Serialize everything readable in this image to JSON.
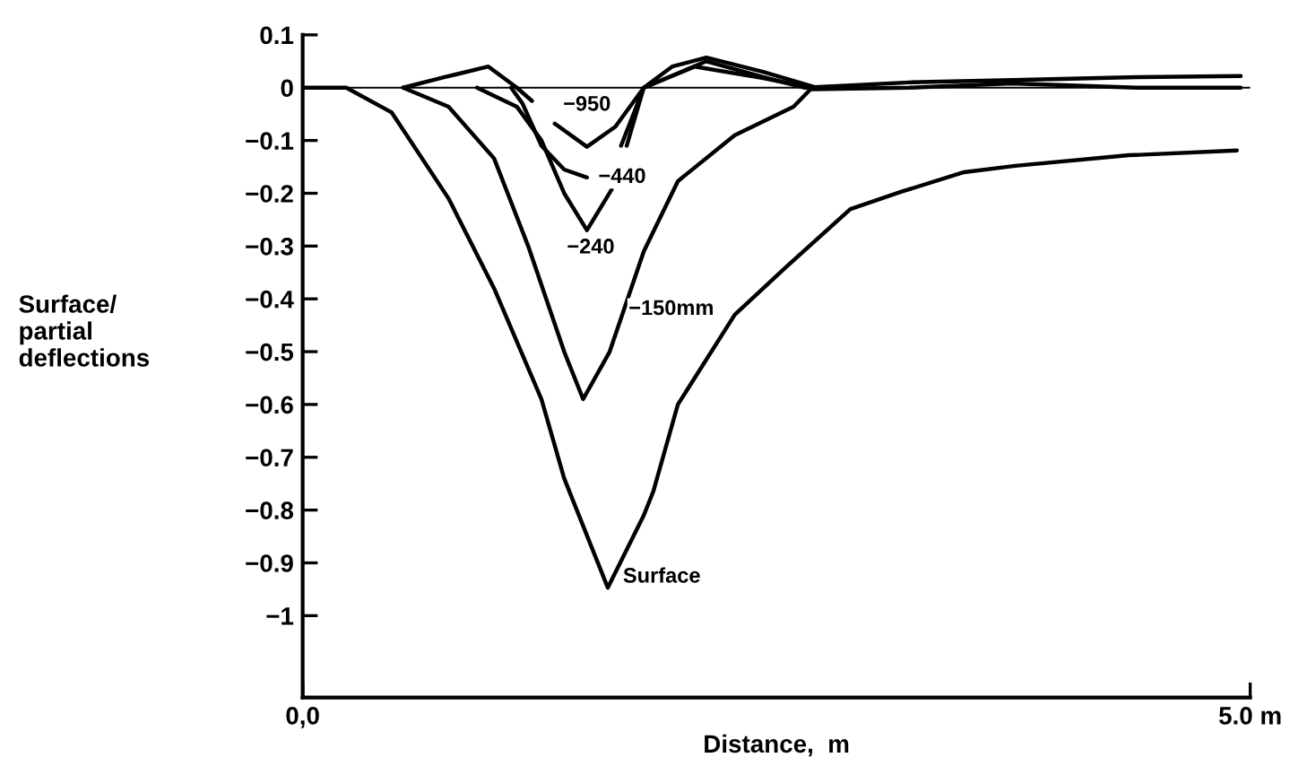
{
  "chart_data": {
    "type": "line",
    "xlabel": "Distance,  m",
    "ylabel": "Surface/\npartial\ndeflections",
    "xlim": [
      0,
      5.0
    ],
    "xticks": [
      {
        "value": 0,
        "label": "0,0"
      },
      {
        "value": 5.0,
        "label": "5.0 m"
      }
    ],
    "ylim": [
      -1.155,
      0.1
    ],
    "yticks": [
      0.1,
      0,
      {
        "value": -0.1,
        "label": "−0.1"
      },
      {
        "value": -0.2,
        "label": "−0.2"
      },
      {
        "value": -0.3,
        "label": "−0.3"
      },
      {
        "value": -0.4,
        "label": "−0.4"
      },
      {
        "value": -0.5,
        "label": "−0.5"
      },
      {
        "value": -0.6,
        "label": "−0.6"
      },
      {
        "value": -0.7,
        "label": "−0.7"
      },
      {
        "value": -0.8,
        "label": "−0.8"
      },
      {
        "value": -0.9,
        "label": "−0.9"
      },
      {
        "value": -1,
        "label": "−1"
      }
    ],
    "grid": false,
    "legend": false,
    "marker": "none",
    "line_style": "solid",
    "ref_lines": [
      {
        "axis": "y",
        "value": 0,
        "color": "#000000"
      }
    ],
    "series": [
      {
        "name": "−950",
        "color": "#000000",
        "x": [
          0.53,
          0.75,
          0.98,
          1.13,
          1.21,
          1.27,
          1.33,
          1.5,
          1.65,
          1.8,
          1.95,
          2.13,
          2.43,
          2.71
        ],
        "values": [
          0,
          0.02,
          0.04,
          0,
          -0.025,
          null,
          -0.068,
          -0.112,
          -0.074,
          0,
          0.04,
          0.057,
          0.03,
          0
        ]
      },
      {
        "name": "−440",
        "color": "#000000",
        "x": [
          1.1,
          1.16,
          1.26,
          1.38,
          1.5,
          1.58,
          1.68,
          1.8,
          2.07,
          2.43,
          2.68
        ],
        "values": [
          0,
          -0.03,
          -0.11,
          -0.155,
          -0.17,
          null,
          -0.11,
          0,
          0.04,
          0.018,
          0
        ]
      },
      {
        "name": "−240",
        "color": "#000000",
        "x": [
          0.92,
          1.13,
          1.26,
          1.38,
          1.5,
          1.63,
          1.66,
          1.71,
          1.8,
          2.13,
          2.43,
          2.65,
          3.2,
          3.8,
          4.4,
          4.95
        ],
        "values": [
          0,
          -0.036,
          -0.1,
          -0.2,
          -0.27,
          -0.193,
          null,
          -0.11,
          0,
          0.05,
          0.02,
          0,
          0.01,
          0.015,
          0.02,
          0.022
        ]
      },
      {
        "name": "−150mm",
        "color": "#000000",
        "x": [
          0.53,
          0.77,
          1.01,
          1.19,
          1.38,
          1.48,
          1.62,
          1.8,
          1.98,
          2.28,
          2.59,
          2.68,
          3.2,
          3.74,
          4.4,
          4.95
        ],
        "values": [
          0,
          -0.036,
          -0.134,
          -0.3,
          -0.5,
          -0.59,
          -0.5,
          -0.31,
          -0.177,
          -0.09,
          -0.036,
          -0.003,
          0,
          0.008,
          0,
          0
        ]
      },
      {
        "name": "Surface",
        "color": "#000000",
        "x": [
          0,
          0.23,
          0.47,
          0.77,
          1.01,
          1.26,
          1.38,
          1.61,
          1.8,
          1.85,
          1.98,
          2.28,
          2.55,
          2.89,
          3.16,
          3.49,
          3.76,
          4.36,
          4.93
        ],
        "values": [
          0,
          0,
          -0.047,
          -0.21,
          -0.38,
          -0.59,
          -0.74,
          -0.947,
          -0.81,
          -0.765,
          -0.6,
          -0.43,
          -0.34,
          -0.23,
          -0.197,
          -0.16,
          -0.148,
          -0.128,
          -0.119
        ]
      }
    ]
  }
}
